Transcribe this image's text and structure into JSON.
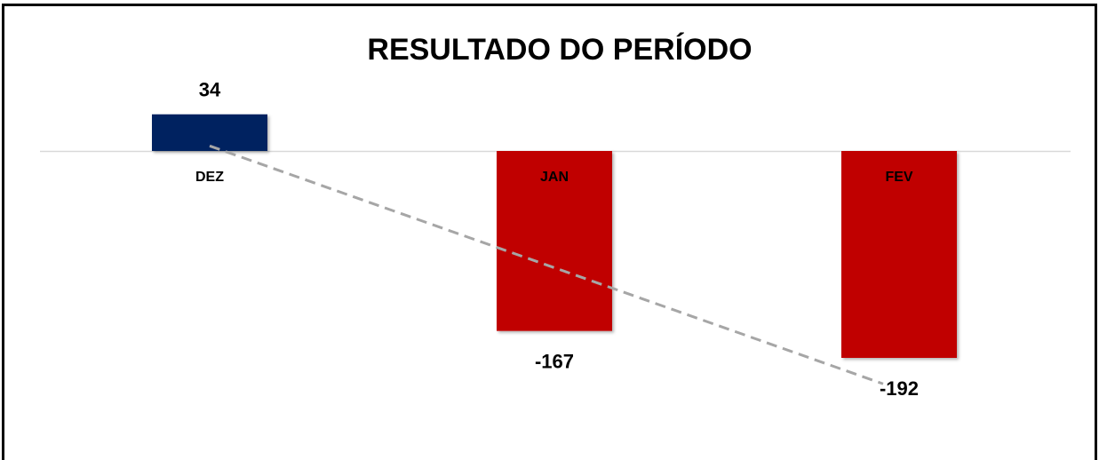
{
  "chart_data": {
    "type": "bar",
    "title": "RESULTADO DO PERÍODO",
    "categories": [
      "DEZ",
      "JAN",
      "FEV"
    ],
    "values": [
      34,
      -167,
      -192
    ],
    "positive_color": "#002060",
    "negative_color": "#c00000",
    "trendline": true,
    "trendline_color": "#a6a6a6"
  }
}
